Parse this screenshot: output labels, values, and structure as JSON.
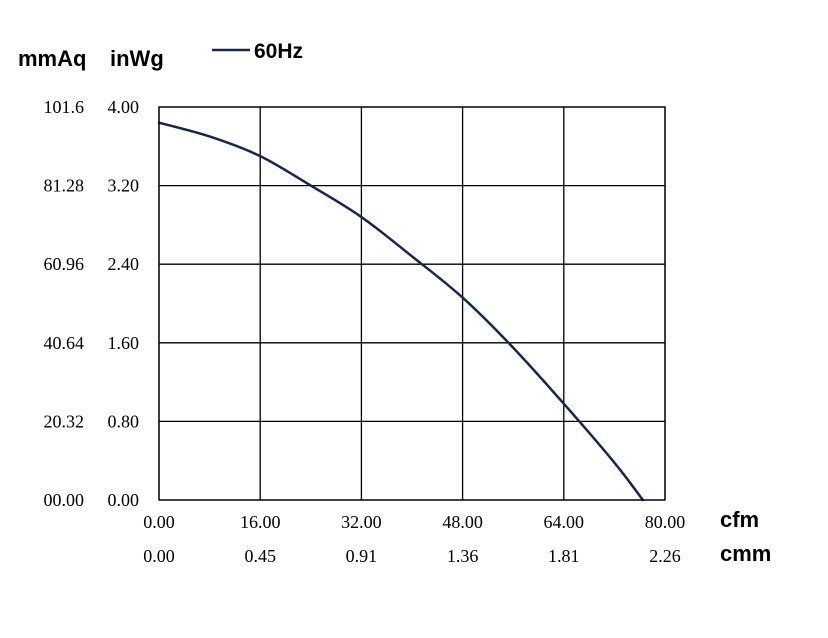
{
  "chart_data": {
    "type": "line",
    "x_unit_primary": "cfm",
    "x_unit_secondary": "cmm",
    "y_unit_left": "mmAq",
    "y_unit_right": "inWg",
    "xlim": [
      0,
      80
    ],
    "ylim": [
      0,
      4.0
    ],
    "x_ticks": [
      {
        "value": 0,
        "cfm": "0.00",
        "cmm": "0.00"
      },
      {
        "value": 16,
        "cfm": "16.00",
        "cmm": "0.45"
      },
      {
        "value": 32,
        "cfm": "32.00",
        "cmm": "0.91"
      },
      {
        "value": 48,
        "cfm": "48.00",
        "cmm": "1.36"
      },
      {
        "value": 64,
        "cfm": "64.00",
        "cmm": "1.81"
      },
      {
        "value": 80,
        "cfm": "80.00",
        "cmm": "2.26"
      }
    ],
    "y_ticks": [
      {
        "value": 0,
        "mmAq": "00.00",
        "inWg": "0.00"
      },
      {
        "value": 0.8,
        "mmAq": "20.32",
        "inWg": "0.80"
      },
      {
        "value": 1.6,
        "mmAq": "40.64",
        "inWg": "1.60"
      },
      {
        "value": 2.4,
        "mmAq": "60.96",
        "inWg": "2.40"
      },
      {
        "value": 3.2,
        "mmAq": "81.28",
        "inWg": "3.20"
      },
      {
        "value": 4.0,
        "mmAq": "101.6",
        "inWg": "4.00"
      }
    ],
    "grid": true,
    "legend_position": "top-left",
    "series": [
      {
        "name": "60Hz",
        "color": "#14284f",
        "x": [
          0,
          8,
          16,
          24,
          32,
          40,
          48,
          56,
          64,
          72,
          76.5
        ],
        "y": [
          3.84,
          3.7,
          3.5,
          3.2,
          2.88,
          2.48,
          2.06,
          1.55,
          0.98,
          0.38,
          0.0
        ]
      }
    ]
  }
}
